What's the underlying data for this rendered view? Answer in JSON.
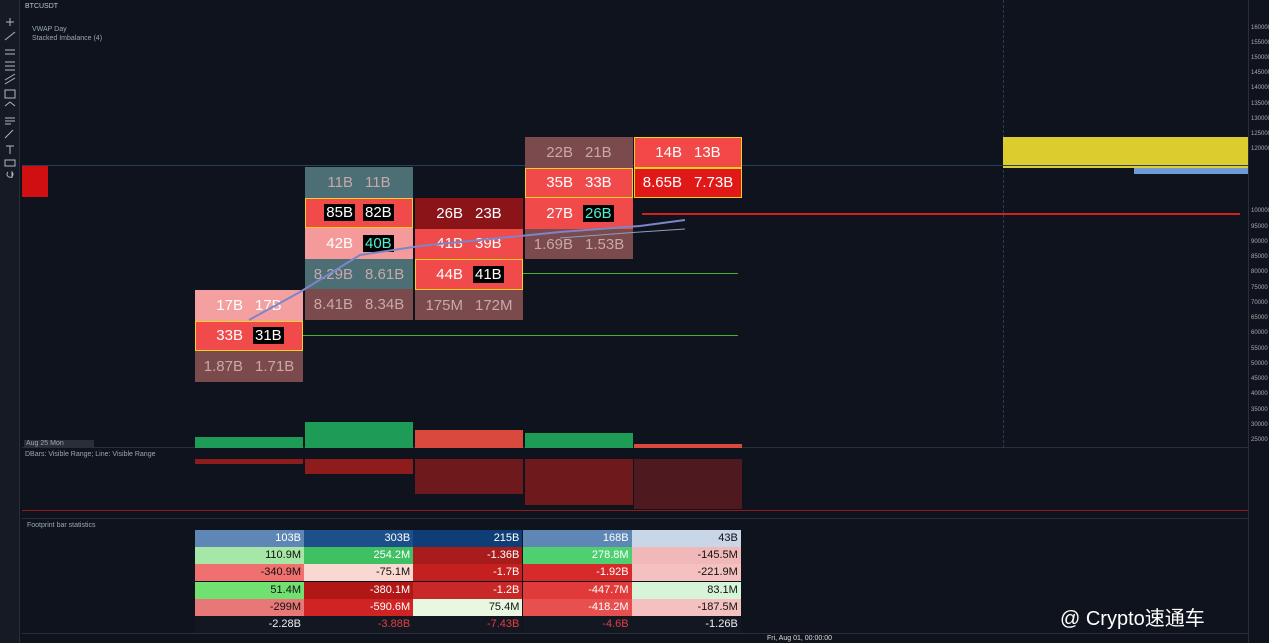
{
  "header": {
    "symbol": "BTCUSDT",
    "legend": [
      "VWAP Day",
      "Stacked Imbalance (4)"
    ]
  },
  "price_axis": [
    "160000",
    "155000",
    "150000",
    "145000",
    "140000",
    "135000",
    "130000",
    "125000",
    "120000",
    "100000",
    "95000",
    "90000",
    "85000",
    "80000",
    "75000",
    "70000",
    "65000",
    "60000",
    "55000",
    "50000",
    "45000",
    "40000",
    "35000",
    "30000",
    "25000"
  ],
  "footprint": [
    {
      "cells": [
        [
          "17B",
          "17B"
        ],
        [
          "33B",
          "31B"
        ],
        [
          "1.87B",
          "1.71B"
        ]
      ]
    },
    {
      "cells": [
        [
          "11B",
          "11B"
        ],
        [
          "85B",
          "82B"
        ],
        [
          "42B",
          "40B"
        ],
        [
          "8.29B",
          "8.61B"
        ],
        [
          "8.41B",
          "8.34B"
        ]
      ]
    },
    {
      "cells": [
        [
          "26B",
          "23B"
        ],
        [
          "41B",
          "39B"
        ],
        [
          "44B",
          "41B"
        ],
        [
          "175M",
          "172M"
        ]
      ]
    },
    {
      "cells": [
        [
          "22B",
          "21B"
        ],
        [
          "35B",
          "33B"
        ],
        [
          "27B",
          "26B"
        ],
        [
          "1.69B",
          "1.53B"
        ]
      ]
    },
    {
      "cells": [
        [
          "14B",
          "13B"
        ],
        [
          "8.65B",
          "7.73B"
        ]
      ]
    }
  ],
  "date_label": "Aug 25 Mon",
  "delta_pane": {
    "title": "DBars: Visible Range; Line: Visible Range"
  },
  "stats": {
    "title": "Footprint bar statistics",
    "rows": [
      [
        "103B",
        "303B",
        "215B",
        "168B",
        "43B"
      ],
      [
        "110.9M",
        "254.2M",
        "-1.36B",
        "278.8M",
        "-145.5M"
      ],
      [
        "-340.9M",
        "-75.1M",
        "-1.7B",
        "-1.92B",
        "-221.9M"
      ],
      [
        "51.4M",
        "-380.1M",
        "-1.2B",
        "-447.7M",
        "83.1M"
      ],
      [
        "-299M",
        "-590.6M",
        "75.4M",
        "-418.2M",
        "-187.5M"
      ],
      [
        "-2.28B",
        "-3.88B",
        "-7.43B",
        "-4.6B",
        "-1.26B"
      ]
    ]
  },
  "time_axis": "Fri, Aug 01, 00:00:00",
  "watermark": "@ Crypto速通车"
}
